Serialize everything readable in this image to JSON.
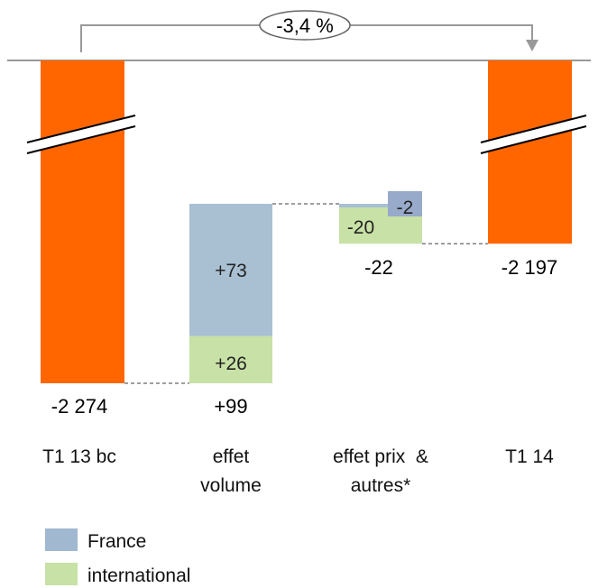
{
  "chart_data": {
    "type": "waterfall",
    "categories": [
      {
        "line1": "T1 13 bc",
        "line2": ""
      },
      {
        "line1": "effet",
        "line2": "volume"
      },
      {
        "line1": "effet prix  &",
        "line2": "autres*"
      },
      {
        "line1": "T1 14",
        "line2": ""
      }
    ],
    "totals": [
      "-2 274",
      "+99",
      "-22",
      "-2 197"
    ],
    "values": {
      "start": -2274,
      "volume_france": 73,
      "volume_international": 26,
      "prix_international": -20,
      "prix_france": -2,
      "end": -2197
    },
    "segment_labels": {
      "volume_france": "+73",
      "volume_international": "+26",
      "prix_international": "-20",
      "prix_france": "-2"
    },
    "change_label": "-3,4 %",
    "series": [
      {
        "name": "France",
        "color": "#a0b8d0"
      },
      {
        "name": "international",
        "color": "#c8e1a6"
      }
    ],
    "total_color": "#ff6600",
    "france_tag_color": "#97aac9",
    "axis_break": true
  }
}
